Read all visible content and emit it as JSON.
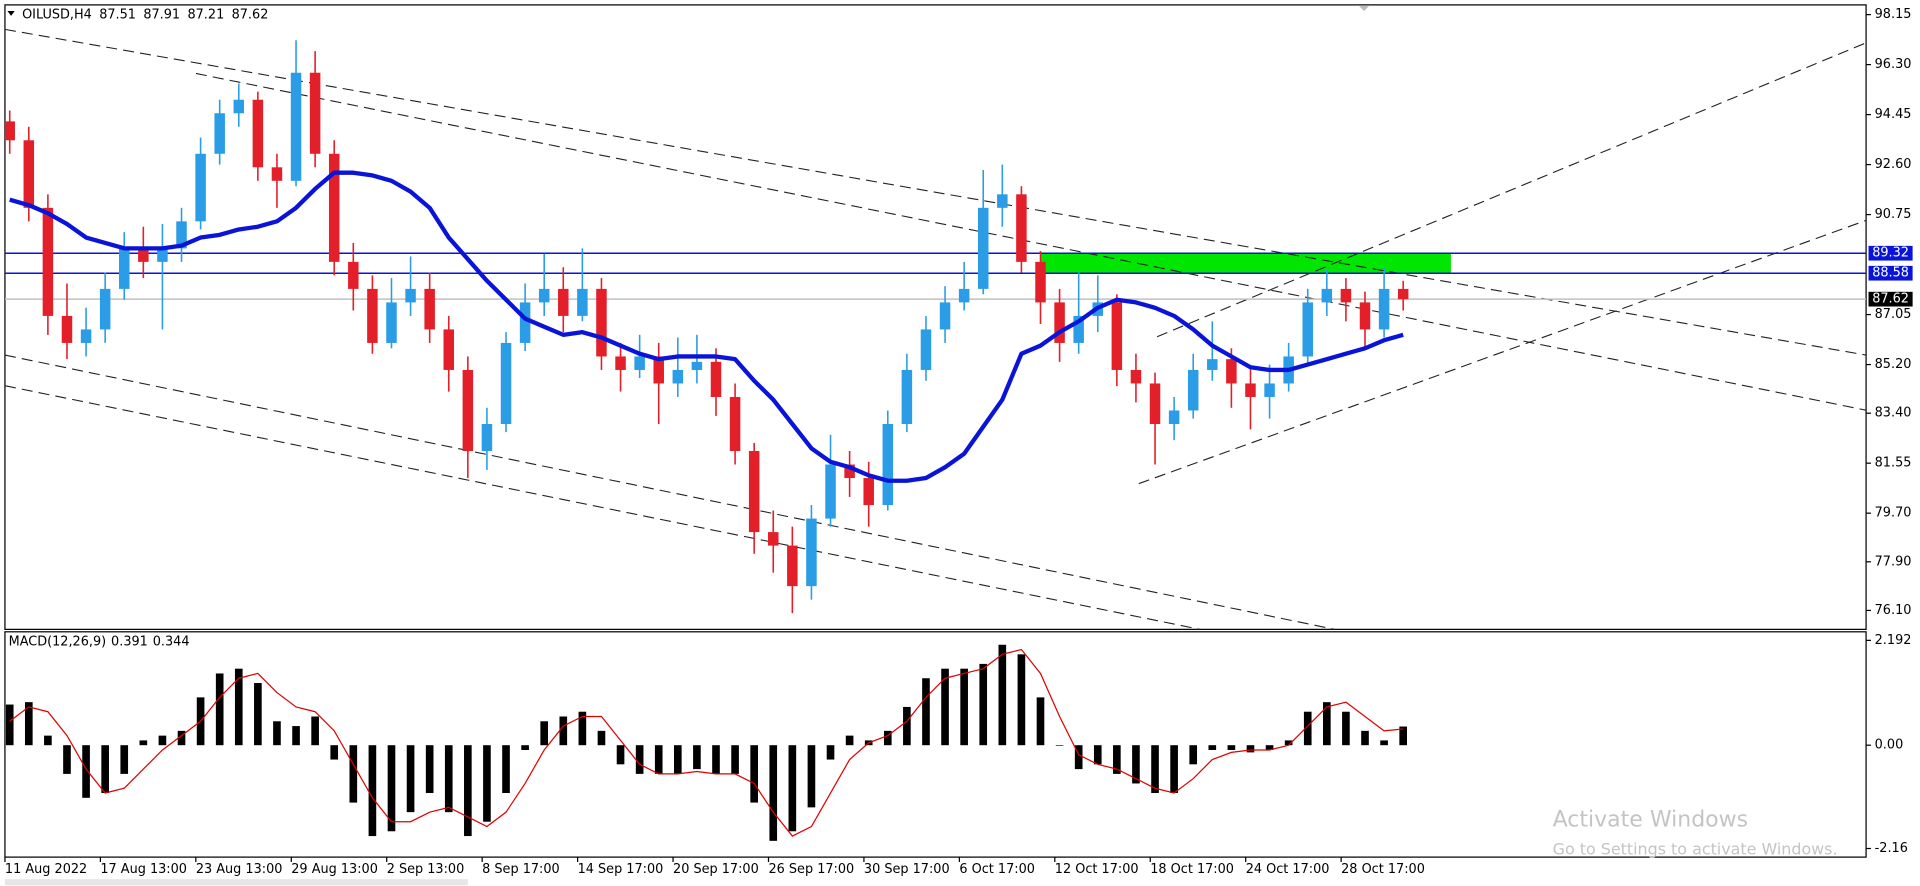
{
  "chart_data": [
    {
      "type": "candlestick",
      "title": "OILUSD,H4",
      "last_bar": {
        "open": 87.51,
        "high": 87.91,
        "low": 87.21,
        "close": 87.62
      },
      "x": [
        1,
        5,
        9,
        13,
        17,
        21,
        25,
        29,
        33,
        37,
        41,
        45,
        49,
        53,
        57,
        61,
        65,
        69,
        73,
        77,
        81,
        85,
        89,
        93,
        97,
        101,
        105,
        109,
        113,
        117,
        121,
        125,
        129,
        133,
        137,
        141,
        145,
        149,
        153,
        157,
        161,
        165,
        169,
        173,
        177,
        181,
        185,
        189,
        193,
        197,
        201,
        205,
        209,
        213,
        217,
        221,
        225,
        229,
        233,
        237,
        241,
        245,
        249,
        253,
        257,
        261,
        265,
        269,
        273,
        277,
        281,
        285,
        289,
        293
      ],
      "open": [
        94.2,
        93.5,
        91.0,
        87.0,
        86.0,
        86.5,
        88.0,
        89.5,
        89.0,
        89.5,
        90.5,
        93.0,
        94.5,
        95.0,
        92.5,
        92.0,
        96.0,
        93.0,
        89.0,
        88.0,
        86.0,
        87.5,
        88.0,
        86.5,
        85.0,
        82.0,
        83.0,
        86.0,
        87.5,
        88.0,
        87.0,
        88.0,
        85.5,
        85.0,
        85.5,
        84.5,
        85.0,
        85.3,
        84.0,
        82.0,
        79.0,
        78.5,
        77.0,
        79.5,
        81.5,
        81.0,
        80.0,
        83.0,
        85.0,
        86.5,
        87.5,
        88.0,
        91.0,
        91.5,
        89.0,
        87.5,
        86.0,
        87.0,
        87.5,
        85.0,
        84.5,
        83.0,
        83.5,
        85.0,
        85.4,
        84.5,
        84.0,
        84.5,
        85.5,
        87.5,
        88.0,
        87.5,
        86.5,
        88.0
      ],
      "high": [
        94.6,
        94.0,
        91.5,
        88.2,
        87.3,
        88.6,
        90.1,
        90.3,
        90.4,
        91.0,
        93.6,
        95.0,
        95.6,
        95.3,
        93.0,
        97.2,
        96.8,
        93.5,
        89.7,
        88.5,
        88.4,
        89.2,
        88.6,
        87.0,
        85.5,
        83.6,
        86.4,
        88.2,
        89.3,
        88.8,
        89.5,
        88.4,
        86.0,
        86.3,
        86.0,
        86.2,
        86.3,
        85.8,
        84.5,
        82.3,
        79.8,
        79.2,
        80.0,
        82.6,
        82.0,
        81.6,
        83.5,
        85.6,
        87.0,
        88.1,
        89.0,
        92.4,
        92.6,
        91.8,
        89.4,
        88.0,
        88.6,
        88.5,
        87.8,
        85.6,
        84.9,
        84.0,
        85.6,
        86.8,
        85.8,
        85.1,
        85.2,
        86.0,
        88.0,
        88.7,
        88.4,
        87.9,
        88.8,
        88.3
      ],
      "low": [
        93.0,
        90.5,
        86.3,
        85.4,
        85.5,
        86.0,
        87.6,
        88.4,
        86.5,
        89.0,
        90.2,
        92.6,
        94.0,
        92.0,
        91.0,
        91.8,
        92.5,
        88.5,
        87.2,
        85.6,
        85.8,
        87.0,
        86.0,
        84.2,
        81.0,
        81.3,
        82.7,
        85.7,
        87.0,
        86.4,
        86.8,
        85.0,
        84.2,
        84.7,
        83.0,
        84.0,
        84.5,
        83.3,
        81.5,
        78.2,
        77.5,
        76.0,
        76.5,
        79.2,
        80.3,
        79.2,
        79.8,
        82.7,
        84.6,
        86.0,
        87.2,
        87.8,
        90.3,
        88.6,
        86.7,
        85.3,
        85.6,
        86.4,
        84.4,
        83.8,
        81.5,
        82.4,
        83.2,
        84.6,
        83.6,
        82.8,
        83.2,
        84.2,
        85.2,
        87.0,
        86.8,
        85.8,
        86.2,
        87.2
      ],
      "close": [
        93.5,
        91.0,
        87.0,
        86.0,
        86.5,
        88.0,
        89.5,
        89.0,
        89.5,
        90.5,
        93.0,
        94.5,
        95.0,
        92.5,
        92.0,
        96.0,
        93.0,
        89.0,
        88.0,
        86.0,
        87.5,
        88.0,
        86.5,
        85.0,
        82.0,
        83.0,
        86.0,
        87.5,
        88.0,
        87.0,
        88.0,
        85.5,
        85.0,
        85.5,
        84.5,
        85.0,
        85.3,
        84.0,
        82.0,
        79.0,
        78.5,
        77.0,
        79.5,
        81.5,
        81.0,
        80.0,
        83.0,
        85.0,
        86.5,
        87.5,
        88.0,
        91.0,
        91.5,
        89.0,
        87.5,
        86.0,
        87.0,
        87.5,
        85.0,
        84.5,
        83.0,
        83.5,
        85.0,
        85.4,
        84.5,
        84.0,
        84.5,
        85.5,
        87.5,
        88.0,
        87.5,
        86.5,
        88.0,
        87.62
      ],
      "up_color": "#2b9de6",
      "down_color": "#e3202a",
      "ma": {
        "color": "#0a14d8",
        "values": [
          91.3,
          91.1,
          90.8,
          90.4,
          89.9,
          89.7,
          89.5,
          89.5,
          89.5,
          89.6,
          89.9,
          90.0,
          90.2,
          90.3,
          90.5,
          91.0,
          91.7,
          92.3,
          92.3,
          92.2,
          92.0,
          91.6,
          91.0,
          89.9,
          89.1,
          88.3,
          87.6,
          86.9,
          86.6,
          86.3,
          86.4,
          86.2,
          85.9,
          85.6,
          85.4,
          85.5,
          85.5,
          85.5,
          85.4,
          84.6,
          83.9,
          83.0,
          82.1,
          81.6,
          81.4,
          81.1,
          80.9,
          80.9,
          81.0,
          81.4,
          81.9,
          82.9,
          83.9,
          85.6,
          85.9,
          86.4,
          86.8,
          87.3,
          87.6,
          87.5,
          87.3,
          87.0,
          86.5,
          85.9,
          85.5,
          85.1,
          85.0,
          85.0,
          85.2,
          85.4,
          85.6,
          85.8,
          86.1,
          86.3
        ]
      },
      "levels": [
        {
          "value": 89.32,
          "color": "#0a14d8",
          "tag_color": "#0a14d8"
        },
        {
          "value": 88.58,
          "color": "#0a14d8",
          "tag_color": "#0a14d8"
        },
        {
          "value": 87.62,
          "color": "#c0c0c0",
          "tag_color": "#000000"
        }
      ],
      "zone": {
        "x": [
          217,
          303
        ],
        "y": [
          88.58,
          89.32
        ],
        "color": "#00e600"
      },
      "xlim": [
        0,
        390
      ],
      "xticks": [
        {
          "value": 0,
          "label": "11 Aug 2022"
        },
        {
          "value": 20,
          "label": "17 Aug 13:00"
        },
        {
          "value": 40,
          "label": "23 Aug 13:00"
        },
        {
          "value": 60,
          "label": "29 Aug 13:00"
        },
        {
          "value": 80,
          "label": "2 Sep 13:00"
        },
        {
          "value": 100,
          "label": "8 Sep 17:00"
        },
        {
          "value": 120,
          "label": "14 Sep 17:00"
        },
        {
          "value": 140,
          "label": "20 Sep 17:00"
        },
        {
          "value": 160,
          "label": "26 Sep 17:00"
        },
        {
          "value": 180,
          "label": "30 Sep 17:00"
        },
        {
          "value": 200,
          "label": "6 Oct 17:00"
        },
        {
          "value": 220,
          "label": "12 Oct 17:00"
        },
        {
          "value": 240,
          "label": "18 Oct 17:00"
        },
        {
          "value": 260,
          "label": "24 Oct 17:00"
        },
        {
          "value": 280,
          "label": "28 Oct 17:00"
        }
      ],
      "ylim": [
        75.4,
        98.51
      ],
      "yticks": [
        98.15,
        {
          "value": 96.3,
          "label": "96.30"
        },
        94.45,
        {
          "value": 92.6,
          "label": "92.60"
        },
        90.75,
        87.05,
        {
          "value": 85.2,
          "label": "85.20"
        },
        {
          "value": 83.4,
          "label": "83.40"
        },
        81.55,
        {
          "value": 79.7,
          "label": "79.70"
        },
        {
          "value": 77.9,
          "label": "77.90"
        },
        {
          "value": 76.1,
          "label": "76.10"
        }
      ]
    },
    {
      "type": "macd",
      "title": "MACD(12,26,9)",
      "macd_value": 0.391,
      "signal_value": 0.344,
      "x": [
        1,
        5,
        9,
        13,
        17,
        21,
        25,
        29,
        33,
        37,
        41,
        45,
        49,
        53,
        57,
        61,
        65,
        69,
        73,
        77,
        81,
        85,
        89,
        93,
        97,
        101,
        105,
        109,
        113,
        117,
        121,
        125,
        129,
        133,
        137,
        141,
        145,
        149,
        153,
        157,
        161,
        165,
        169,
        173,
        177,
        181,
        185,
        189,
        193,
        197,
        201,
        205,
        209,
        213,
        217,
        221,
        225,
        229,
        233,
        237,
        241,
        245,
        249,
        253,
        257,
        261,
        265,
        269,
        273,
        277,
        281,
        285,
        289,
        293
      ],
      "histogram": {
        "color": "#000000",
        "values": [
          0.85,
          0.9,
          0.2,
          -0.6,
          -1.1,
          -1.0,
          -0.6,
          0.1,
          0.2,
          0.3,
          1.0,
          1.5,
          1.6,
          1.3,
          0.5,
          0.4,
          0.6,
          -0.3,
          -1.2,
          -1.9,
          -1.8,
          -1.4,
          -1.0,
          -1.4,
          -1.9,
          -1.6,
          -1.0,
          -0.1,
          0.5,
          0.6,
          0.7,
          0.3,
          -0.4,
          -0.6,
          -0.6,
          -0.6,
          -0.5,
          -0.6,
          -0.6,
          -1.2,
          -2.0,
          -1.8,
          -1.3,
          -0.3,
          0.2,
          0.1,
          0.3,
          0.8,
          1.4,
          1.6,
          1.6,
          1.7,
          2.1,
          1.9,
          1.0,
          0.0,
          -0.5,
          -0.4,
          -0.6,
          -0.8,
          -1.0,
          -1.0,
          -0.4,
          -0.1,
          -0.1,
          -0.15,
          -0.1,
          0.1,
          0.7,
          0.9,
          0.7,
          0.3,
          0.1,
          0.39
        ]
      },
      "signal": {
        "color": "#e00000",
        "values": [
          0.5,
          0.8,
          0.7,
          0.2,
          -0.5,
          -1.0,
          -0.9,
          -0.5,
          -0.1,
          0.2,
          0.5,
          1.0,
          1.4,
          1.5,
          1.1,
          0.8,
          0.7,
          0.3,
          -0.4,
          -1.1,
          -1.6,
          -1.6,
          -1.4,
          -1.3,
          -1.5,
          -1.7,
          -1.4,
          -0.8,
          -0.1,
          0.4,
          0.6,
          0.6,
          0.1,
          -0.4,
          -0.6,
          -0.6,
          -0.55,
          -0.6,
          -0.6,
          -0.8,
          -1.4,
          -1.9,
          -1.7,
          -1.0,
          -0.3,
          0.05,
          0.2,
          0.5,
          1.0,
          1.4,
          1.5,
          1.6,
          1.9,
          2.0,
          1.5,
          0.6,
          -0.2,
          -0.4,
          -0.5,
          -0.7,
          -0.9,
          -1.0,
          -0.7,
          -0.3,
          -0.15,
          -0.1,
          -0.1,
          0.0,
          0.4,
          0.8,
          0.9,
          0.6,
          0.3,
          0.34
        ]
      },
      "xlim": [
        0,
        390
      ],
      "ylim": [
        -2.34,
        2.371
      ],
      "yticks": [
        2.192,
        {
          "value": 0,
          "label": "0.00"
        },
        -2.16
      ]
    }
  ],
  "watermark": {
    "title": "Activate Windows",
    "subtitle": "Go to Settings to activate Windows."
  }
}
